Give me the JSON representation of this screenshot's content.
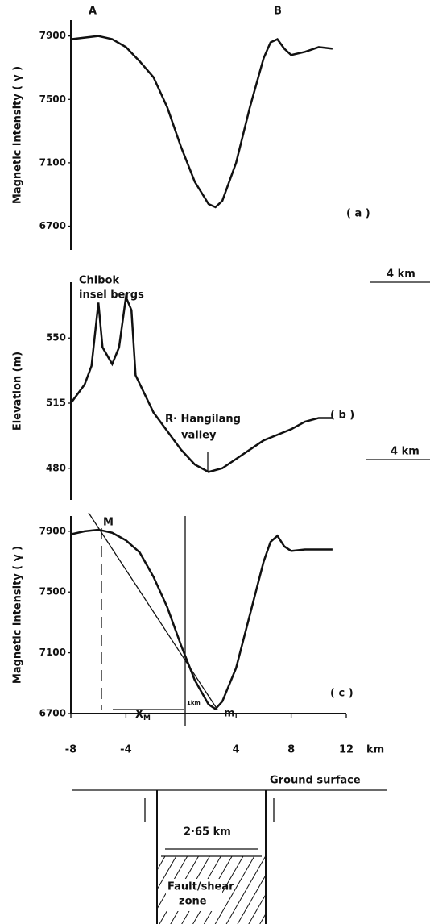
{
  "chart_data": [
    {
      "type": "line",
      "ylabel": "Magnetic intensity ( γ )",
      "panel": "( a )",
      "start_label": "A",
      "end_label": "B",
      "scale": "4 km",
      "x": [
        -8,
        -7,
        -6,
        -5,
        -4,
        -3,
        -2,
        -1,
        0,
        1,
        2,
        2.5,
        3,
        4,
        5,
        6,
        6.5,
        7,
        7.5,
        8,
        9,
        10,
        11
      ],
      "values": [
        7880,
        7890,
        7900,
        7880,
        7830,
        7740,
        7640,
        7450,
        7200,
        6980,
        6840,
        6820,
        6860,
        7100,
        7450,
        7760,
        7860,
        7880,
        7820,
        7780,
        7800,
        7830,
        7820
      ],
      "color": "#111111",
      "xlim": [
        -8,
        12
      ],
      "ylim": [
        6550,
        8000
      ],
      "yticks": [
        6700,
        7100,
        7500,
        7900
      ]
    },
    {
      "type": "line",
      "ylabel": "Elevation (m)",
      "panel": "( b )",
      "peaks_label": [
        "Chibok",
        "insel bergs"
      ],
      "valley_label": [
        "R· Hangilang",
        "valley"
      ],
      "scale": "4 km",
      "x": [
        -8,
        -7,
        -6.5,
        -6,
        -5.7,
        -5,
        -4.5,
        -4,
        -3.6,
        -3.3,
        -2,
        -1,
        0,
        1,
        2,
        3,
        4,
        5,
        6,
        7,
        8,
        9,
        10,
        11
      ],
      "values": [
        515,
        525,
        535,
        569,
        545,
        536,
        545,
        572,
        565,
        530,
        510,
        500,
        490,
        482,
        478,
        480,
        485,
        490,
        495,
        498,
        501,
        505,
        507,
        507
      ],
      "color": "#111111",
      "xlim": [
        -8,
        12
      ],
      "ylim": [
        463,
        580
      ],
      "yticks": [
        480,
        515,
        550
      ]
    },
    {
      "type": "line",
      "ylabel": "Magnetic intensity ( γ )",
      "panel": "( c )",
      "xunit": "km",
      "max_label": "M",
      "min_label": "m",
      "distance_label": "X",
      "distance_sub": "M",
      "unit_mark": "1km",
      "x": [
        -8,
        -7,
        -6,
        -5,
        -4,
        -3,
        -2,
        -1,
        0,
        1,
        2,
        2.5,
        3,
        4,
        5,
        6,
        6.5,
        7,
        7.5,
        8,
        9,
        10,
        11
      ],
      "values": [
        7880,
        7900,
        7910,
        7890,
        7840,
        7760,
        7600,
        7400,
        7150,
        6920,
        6760,
        6730,
        6780,
        7000,
        7350,
        7700,
        7830,
        7870,
        7800,
        7770,
        7780,
        7780,
        7780
      ],
      "color": "#111111",
      "xlim": [
        -8,
        12
      ],
      "ylim": [
        6700,
        8000
      ],
      "yticks": [
        6700,
        7100,
        7500,
        7900
      ],
      "xticks": [
        -8,
        -4,
        4,
        8,
        12
      ]
    }
  ],
  "diagram": {
    "ground": "Ground surface",
    "width": "2·65 km",
    "zone": [
      "Fault/shear",
      "zone"
    ]
  }
}
